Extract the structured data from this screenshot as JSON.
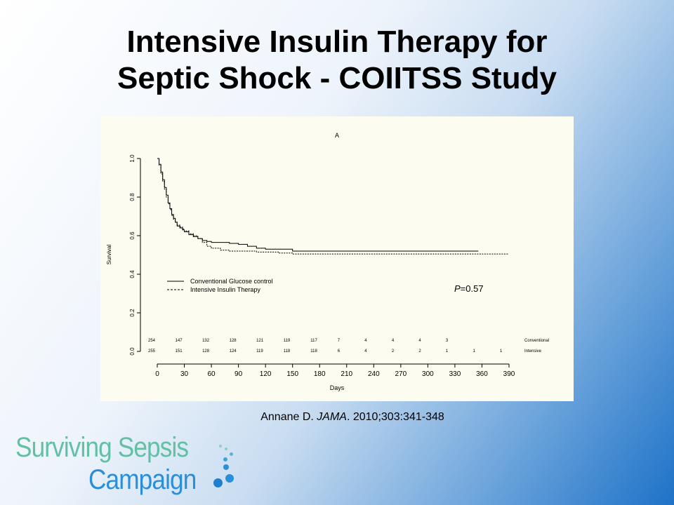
{
  "slide": {
    "title_line1": "Intensive Insulin Therapy for",
    "title_line2": "Septic Shock - COIITSS Study",
    "citation_author": "Annane D. ",
    "citation_journal": "JAMA",
    "citation_rest": ". 2010;303:341-348"
  },
  "logo": {
    "line1": "Surviving Sepsis",
    "line2": "Campaign",
    "colors": {
      "green": "#62c0a4",
      "blue": "#2a8fd8"
    }
  },
  "chart_data": {
    "type": "line",
    "title": "A",
    "xlabel": "Days",
    "ylabel": "Survival",
    "xlim": [
      0,
      390
    ],
    "ylim": [
      0,
      1.0
    ],
    "x_ticks": [
      0,
      30,
      60,
      90,
      120,
      150,
      180,
      210,
      240,
      270,
      300,
      330,
      360,
      390
    ],
    "y_ticks": [
      "0.0",
      "0.2",
      "0.4",
      "0.6",
      "0.8",
      "1.0"
    ],
    "annotation": {
      "italic": "P",
      "rest": "=0.57"
    },
    "legend_position": "center-left",
    "series": [
      {
        "name": "Conventional Glucose control",
        "style": "solid",
        "x": [
          0,
          2,
          4,
          6,
          8,
          10,
          12,
          14,
          16,
          18,
          20,
          22,
          25,
          28,
          30,
          35,
          40,
          45,
          50,
          55,
          60,
          70,
          80,
          90,
          100,
          110,
          120,
          135,
          150,
          200,
          270,
          330,
          356
        ],
        "y": [
          1.0,
          0.97,
          0.93,
          0.89,
          0.85,
          0.81,
          0.77,
          0.74,
          0.71,
          0.69,
          0.67,
          0.65,
          0.64,
          0.63,
          0.62,
          0.605,
          0.595,
          0.585,
          0.575,
          0.57,
          0.565,
          0.565,
          0.56,
          0.555,
          0.545,
          0.535,
          0.53,
          0.53,
          0.52,
          0.52,
          0.52,
          0.52,
          0.52
        ]
      },
      {
        "name": "Intensive Insulin Therapy",
        "style": "dashed",
        "x": [
          0,
          2,
          4,
          6,
          8,
          10,
          12,
          14,
          16,
          18,
          20,
          22,
          25,
          28,
          30,
          35,
          40,
          45,
          50,
          55,
          60,
          70,
          80,
          90,
          100,
          110,
          120,
          135,
          150,
          200,
          270,
          330,
          390
        ],
        "y": [
          1.0,
          0.965,
          0.92,
          0.88,
          0.84,
          0.8,
          0.765,
          0.735,
          0.705,
          0.685,
          0.67,
          0.655,
          0.645,
          0.635,
          0.625,
          0.61,
          0.6,
          0.585,
          0.565,
          0.545,
          0.535,
          0.525,
          0.52,
          0.52,
          0.52,
          0.515,
          0.515,
          0.51,
          0.505,
          0.505,
          0.505,
          0.505,
          0.505
        ]
      }
    ],
    "at_risk": {
      "x": [
        0,
        30,
        60,
        90,
        120,
        150,
        180,
        210,
        240,
        270,
        300,
        330,
        360,
        390
      ],
      "rows": [
        {
          "label": "Conventional",
          "values": [
            "254",
            "147",
            "132",
            "128",
            "121",
            "119",
            "117",
            "7",
            "4",
            "4",
            "4",
            "3",
            "",
            ""
          ]
        },
        {
          "label": "Intensive",
          "values": [
            "255",
            "151",
            "128",
            "124",
            "119",
            "118",
            "118",
            "6",
            "4",
            "2",
            "2",
            "1",
            "1",
            "1"
          ]
        }
      ]
    }
  }
}
